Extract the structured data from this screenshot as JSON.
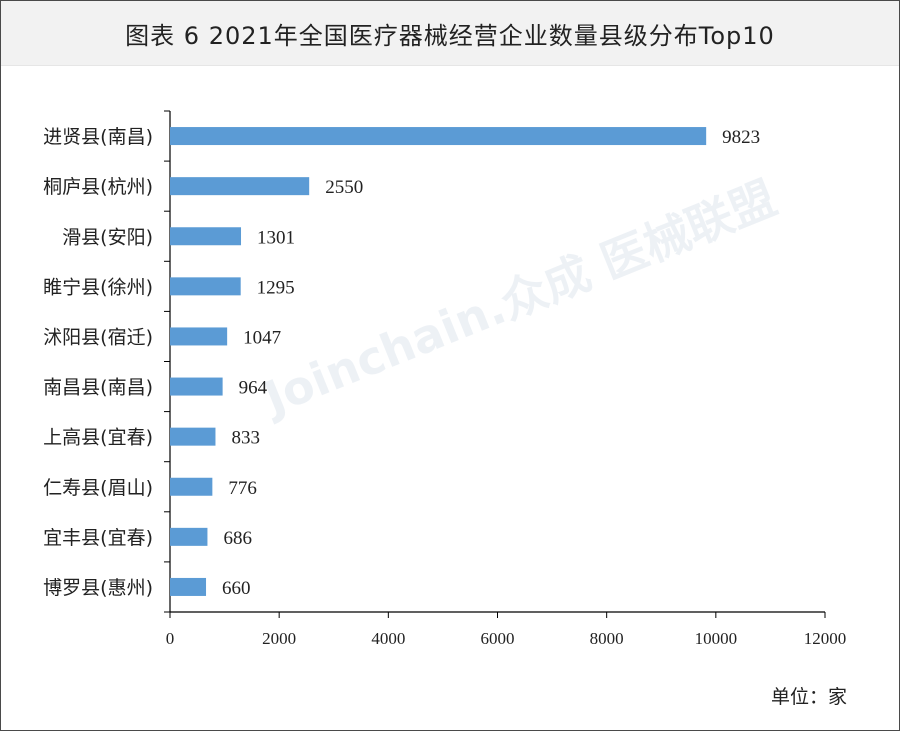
{
  "title": "图表 6  2021年全国医疗器械经营企业数量县级分布Top10",
  "unit_label": "单位：家",
  "watermark": "Joinchain.众成 医械联盟",
  "colors": {
    "bar": "#5b9bd5",
    "axis": "#000000",
    "text": "#222222"
  },
  "chart_data": {
    "type": "bar",
    "orientation": "horizontal",
    "categories": [
      "进贤县(南昌)",
      "桐庐县(杭州)",
      "滑县(安阳)",
      "睢宁县(徐州)",
      "沭阳县(宿迁)",
      "南昌县(南昌)",
      "上高县(宜春)",
      "仁寿县(眉山)",
      "宜丰县(宜春)",
      "博罗县(惠州)"
    ],
    "values": [
      9823,
      2550,
      1301,
      1295,
      1047,
      964,
      833,
      776,
      686,
      660
    ],
    "xlim": [
      0,
      12000
    ],
    "xticks": [
      0,
      2000,
      4000,
      6000,
      8000,
      10000,
      12000
    ],
    "data_labels": true,
    "grid": false,
    "legend": "none"
  }
}
